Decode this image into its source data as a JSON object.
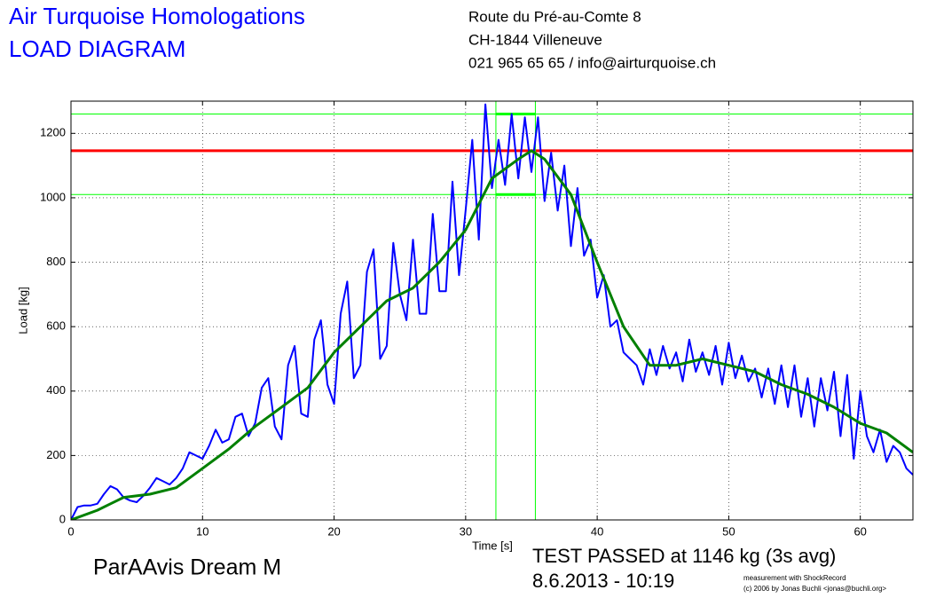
{
  "header": {
    "title": "Air Turquoise Homologations",
    "subtitle": "LOAD DIAGRAM",
    "address": [
      "Route du Pré-au-Comte 8",
      "CH-1844 Villeneuve",
      "021 965 65 65 / info@airturquoise.ch"
    ]
  },
  "footer": {
    "model": "ParAAvis Dream M",
    "result": "TEST PASSED at 1146 kg (3s avg)",
    "date": "8.6.2013 - 10:19",
    "credit1": "measurement with ShockRecord",
    "credit2": "(c) 2006 by Jonas Buchli <jonas@buchli.org>"
  },
  "chart_data": {
    "type": "line",
    "x_label": "Time [s]",
    "y_label": "Load [kg]",
    "xlim": [
      0,
      64
    ],
    "ylim": [
      0,
      1300
    ],
    "xticks": [
      0,
      10,
      20,
      30,
      40,
      50,
      60
    ],
    "yticks": [
      0,
      200,
      400,
      600,
      800,
      1000,
      1200
    ],
    "grid": true,
    "hlines": [
      {
        "value": 1146,
        "color": "#ff0000"
      },
      {
        "value": 1260,
        "color": "#00ff00"
      },
      {
        "value": 1010,
        "color": "#00ff00"
      }
    ],
    "vlines": [
      {
        "value": 32.3,
        "color": "#00ff00"
      },
      {
        "value": 35.3,
        "color": "#00ff00"
      }
    ],
    "series": [
      {
        "color": "#0000ff",
        "x": [
          0,
          0.5,
          1,
          1.5,
          2,
          2.5,
          3,
          3.5,
          4,
          4.5,
          5,
          5.5,
          6,
          6.5,
          7,
          7.5,
          8,
          8.5,
          9,
          9.5,
          10,
          10.5,
          11,
          11.5,
          12,
          12.5,
          13,
          13.5,
          14,
          14.5,
          15,
          15.5,
          16,
          16.5,
          17,
          17.5,
          18,
          18.5,
          19,
          19.5,
          20,
          20.5,
          21,
          21.5,
          22,
          22.5,
          23,
          23.5,
          24,
          24.5,
          25,
          25.5,
          26,
          26.5,
          27,
          27.5,
          28,
          28.5,
          29,
          29.5,
          30,
          30.5,
          31,
          31.5,
          32,
          32.5,
          33,
          33.5,
          34,
          34.5,
          35,
          35.5,
          36,
          36.5,
          37,
          37.5,
          38,
          38.5,
          39,
          39.5,
          40,
          40.5,
          41,
          41.5,
          42,
          42.5,
          43,
          43.5,
          44,
          44.5,
          45,
          45.5,
          46,
          46.5,
          47,
          47.5,
          48,
          48.5,
          49,
          49.5,
          50,
          50.5,
          51,
          51.5,
          52,
          52.5,
          53,
          53.5,
          54,
          54.5,
          55,
          55.5,
          56,
          56.5,
          57,
          57.5,
          58,
          58.5,
          59,
          59.5,
          60,
          60.5,
          61,
          61.5,
          62,
          62.5,
          63,
          63.5,
          64
        ],
        "values": [
          0,
          40,
          45,
          45,
          50,
          80,
          105,
          95,
          70,
          60,
          55,
          75,
          100,
          130,
          120,
          110,
          130,
          160,
          210,
          200,
          190,
          230,
          280,
          240,
          250,
          320,
          330,
          260,
          300,
          410,
          440,
          290,
          250,
          480,
          540,
          330,
          320,
          560,
          620,
          420,
          360,
          640,
          740,
          440,
          480,
          770,
          840,
          500,
          540,
          860,
          700,
          620,
          870,
          640,
          640,
          950,
          710,
          710,
          1050,
          760,
          960,
          1180,
          870,
          1290,
          1030,
          1180,
          1040,
          1260,
          1060,
          1250,
          1080,
          1250,
          990,
          1140,
          960,
          1100,
          850,
          1030,
          820,
          870,
          690,
          760,
          600,
          620,
          520,
          500,
          480,
          420,
          530,
          450,
          540,
          470,
          520,
          430,
          560,
          460,
          520,
          450,
          540,
          420,
          550,
          440,
          510,
          430,
          470,
          380,
          470,
          360,
          480,
          350,
          480,
          320,
          440,
          290,
          440,
          340,
          460,
          260,
          450,
          190,
          400,
          260,
          210,
          280,
          180,
          230,
          210,
          160,
          140
        ]
      },
      {
        "color": "#008000",
        "x": [
          0,
          2,
          4,
          6,
          8,
          10,
          12,
          14,
          16,
          18,
          20,
          22,
          24,
          26,
          28,
          30,
          32,
          34,
          35,
          36,
          38,
          40,
          42,
          44,
          46,
          48,
          50,
          52,
          54,
          56,
          58,
          60,
          62,
          64
        ],
        "values": [
          0,
          30,
          70,
          80,
          100,
          160,
          220,
          290,
          350,
          410,
          520,
          600,
          680,
          720,
          800,
          900,
          1060,
          1120,
          1146,
          1120,
          1010,
          800,
          600,
          480,
          480,
          500,
          480,
          460,
          420,
          390,
          350,
          300,
          270,
          210
        ]
      }
    ]
  }
}
